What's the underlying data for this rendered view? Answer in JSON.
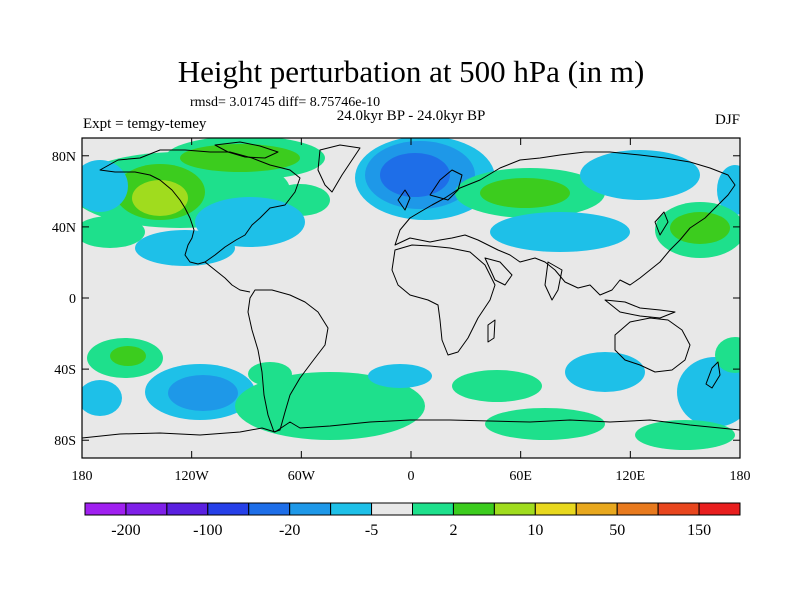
{
  "chart_data": {
    "type": "heatmap",
    "title": "Height perturbation at 500 hPa (in m)",
    "stats_label": "rmsd= 3.01745 diff= 8.75746e-10",
    "subtitle": "24.0kyr BP - 24.0kyr BP",
    "experiment_label": "Expt = temgy-temey",
    "season_label": "DJF",
    "x_ticks": [
      {
        "value": -180,
        "label": "180"
      },
      {
        "value": -120,
        "label": "120W"
      },
      {
        "value": -60,
        "label": "60W"
      },
      {
        "value": 0,
        "label": "0"
      },
      {
        "value": 60,
        "label": "60E"
      },
      {
        "value": 120,
        "label": "120E"
      },
      {
        "value": 180,
        "label": "180"
      }
    ],
    "y_ticks": [
      {
        "value": 80,
        "label": "80N"
      },
      {
        "value": 40,
        "label": "40N"
      },
      {
        "value": 0,
        "label": "0"
      },
      {
        "value": -40,
        "label": "40S"
      },
      {
        "value": -80,
        "label": "80S"
      }
    ],
    "lon_range": [
      -180,
      180
    ],
    "lat_range": [
      -90,
      90
    ],
    "colorbar": {
      "colors": [
        "#a020f0",
        "#7f20e8",
        "#5a20e0",
        "#2640e8",
        "#1e6ee8",
        "#1e98e8",
        "#1ec0e8",
        "#e8e8e8",
        "#1ee08c",
        "#3ccc1e",
        "#a0dc1e",
        "#e8d81e",
        "#e8a81e",
        "#e87a1e",
        "#e8461e",
        "#e81e1e"
      ],
      "labels": [
        {
          "index": 1,
          "text": "-200"
        },
        {
          "index": 3,
          "text": "-100"
        },
        {
          "index": 5,
          "text": "-20"
        },
        {
          "index": 7,
          "text": "-5"
        },
        {
          "index": 9,
          "text": "2"
        },
        {
          "index": 11,
          "text": "10"
        },
        {
          "index": 13,
          "text": "50"
        },
        {
          "index": 15,
          "text": "150"
        }
      ]
    },
    "anomalies": [
      {
        "lon": -135,
        "lat": 60,
        "level": "8"
      },
      {
        "lon": -133,
        "lat": 55,
        "level": "10"
      },
      {
        "lon": -100,
        "lat": 72,
        "level": "8"
      },
      {
        "lon": -170,
        "lat": 50,
        "level": "-5"
      },
      {
        "lon": -85,
        "lat": 42,
        "level": "-5"
      },
      {
        "lon": -110,
        "lat": 35,
        "level": "-5"
      },
      {
        "lon": -45,
        "lat": 45,
        "level": "8"
      },
      {
        "lon": -5,
        "lat": 64,
        "level": "-5"
      },
      {
        "lon": 0,
        "lat": 62,
        "level": "-20"
      },
      {
        "lon": 55,
        "lat": 55,
        "level": "8"
      },
      {
        "lon": 65,
        "lat": 38,
        "level": "-5"
      },
      {
        "lon": 120,
        "lat": 63,
        "level": "-5"
      },
      {
        "lon": 160,
        "lat": 42,
        "level": "8"
      },
      {
        "lon": 160,
        "lat": 40,
        "level": "10"
      },
      {
        "lon": -165,
        "lat": -35,
        "level": "8"
      },
      {
        "lon": -165,
        "lat": -30,
        "level": "10"
      },
      {
        "lon": -125,
        "lat": -52,
        "level": "-5"
      },
      {
        "lon": -115,
        "lat": -55,
        "level": "-20"
      },
      {
        "lon": -55,
        "lat": -60,
        "level": "8"
      },
      {
        "lon": 5,
        "lat": -45,
        "level": "-5"
      },
      {
        "lon": 70,
        "lat": -42,
        "level": "-5"
      },
      {
        "lon": 140,
        "lat": -65,
        "level": "-5"
      }
    ]
  }
}
